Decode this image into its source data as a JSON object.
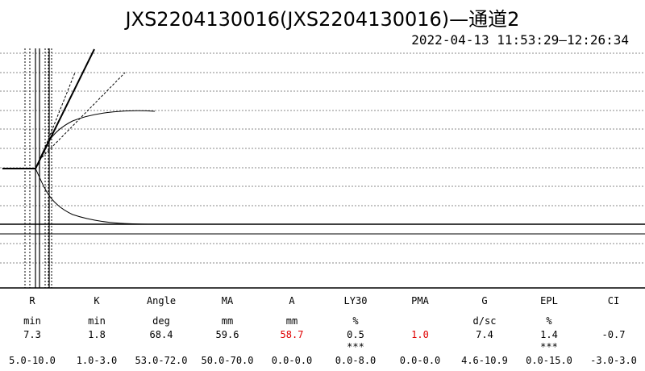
{
  "title": "JXS2204130016(JXS2204130016)—通道2",
  "time_range": "2022-04-13 11:53:29—12:26:34",
  "chart_data": {
    "type": "line",
    "title": "JXS2204130016(JXS2204130016)—通道2",
    "xlabel": "",
    "ylabel": "",
    "grid": "horizontal dotted",
    "series": [
      {
        "shape": "baseline-pre-split"
      },
      {
        "shape": "upper-envelope"
      },
      {
        "shape": "lower-envelope"
      }
    ]
  },
  "results": {
    "columns": [
      {
        "name": "R",
        "unit": "min",
        "value": "7.3",
        "stars": "",
        "range": "5.0-10.0",
        "color": "#000000"
      },
      {
        "name": "K",
        "unit": "min",
        "value": "1.8",
        "stars": "",
        "range": "1.0-3.0",
        "color": "#000000"
      },
      {
        "name": "Angle",
        "unit": "deg",
        "value": "68.4",
        "stars": "",
        "range": "53.0-72.0",
        "color": "#000000"
      },
      {
        "name": "MA",
        "unit": "mm",
        "value": "59.6",
        "stars": "",
        "range": "50.0-70.0",
        "color": "#000000"
      },
      {
        "name": "A",
        "unit": "mm",
        "value": "58.7",
        "stars": "",
        "range": "0.0-0.0",
        "color": "#e00000"
      },
      {
        "name": "LY30",
        "unit": "%",
        "value": "0.5",
        "stars": "***",
        "range": "0.0-8.0",
        "color": "#000000"
      },
      {
        "name": "PMA",
        "unit": "",
        "value": "1.0",
        "stars": "",
        "range": "0.0-0.0",
        "color": "#e00000"
      },
      {
        "name": "G",
        "unit": "d/sc",
        "value": "7.4",
        "stars": "",
        "range": "4.6-10.9",
        "color": "#000000"
      },
      {
        "name": "EPL",
        "unit": "%",
        "value": "1.4",
        "stars": "***",
        "range": "0.0-15.0",
        "color": "#000000"
      },
      {
        "name": "CI",
        "unit": "",
        "value": "-0.7",
        "stars": "",
        "range": "-3.0-3.0",
        "color": "#000000"
      }
    ]
  }
}
